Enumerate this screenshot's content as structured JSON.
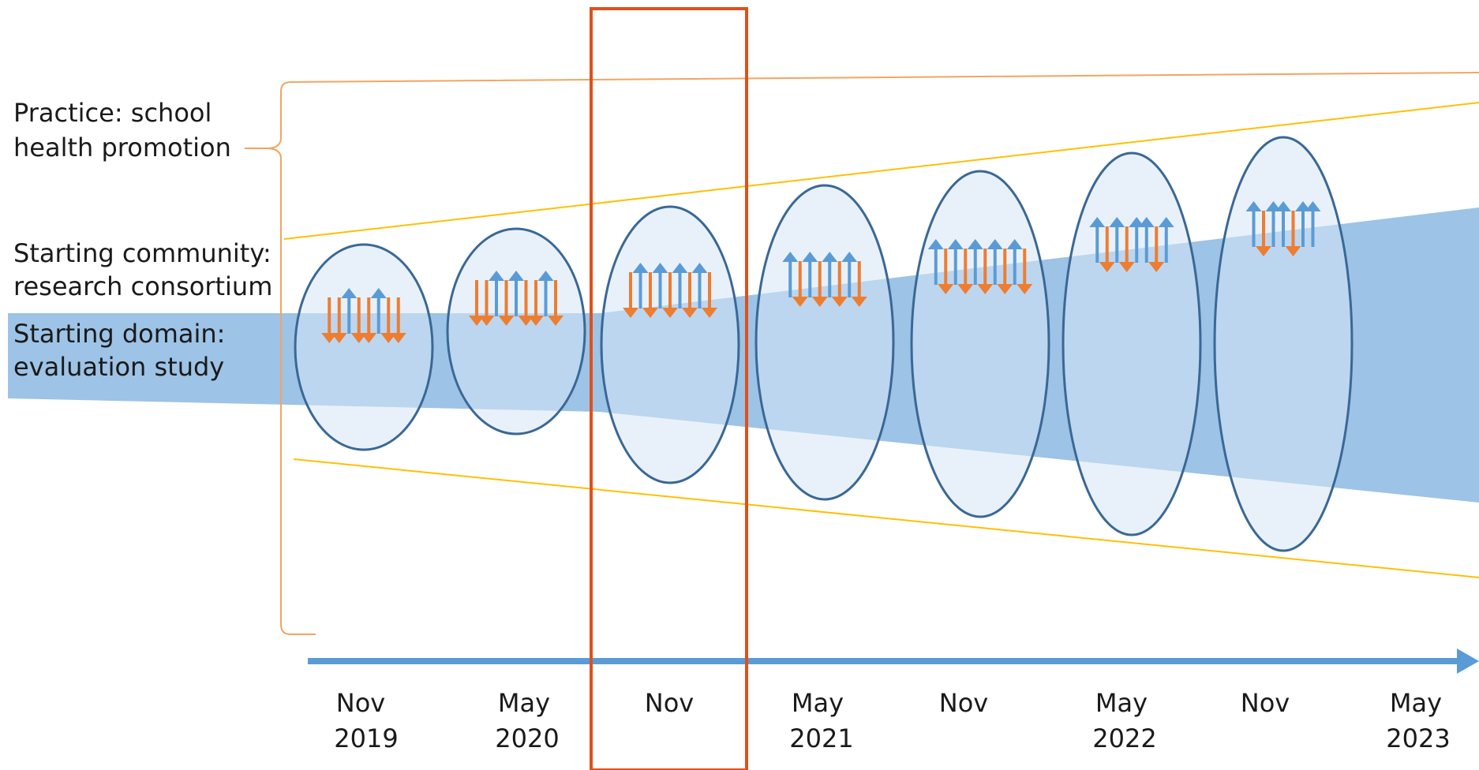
{
  "labels": {
    "practice": [
      "Practice: school",
      "health promotion"
    ],
    "community": [
      "Starting community:",
      "research consortium"
    ],
    "domain": [
      "Starting domain:",
      "evaluation study"
    ]
  },
  "timeline": [
    {
      "month": "Nov",
      "year": "2019"
    },
    {
      "month": "May",
      "year": "2020"
    },
    {
      "month": "Nov",
      "year": ""
    },
    {
      "month": "May",
      "year": "2021"
    },
    {
      "month": "Nov",
      "year": ""
    },
    {
      "month": "May",
      "year": "2022"
    },
    {
      "month": "Nov",
      "year": ""
    },
    {
      "month": "May",
      "year": "2023"
    }
  ],
  "arrow_patterns": [
    [
      "down",
      "down",
      "up",
      "down",
      "down",
      "up",
      "down",
      "down"
    ],
    [
      "down",
      "down",
      "up",
      "down",
      "up",
      "down",
      "down",
      "up",
      "down"
    ],
    [
      "down",
      "up",
      "down",
      "up",
      "down",
      "up",
      "down",
      "up",
      "down"
    ],
    [
      "up",
      "down",
      "up",
      "down",
      "up",
      "down",
      "up",
      "down"
    ],
    [
      "up",
      "down",
      "up",
      "down",
      "up",
      "down",
      "up",
      "down",
      "up",
      "down"
    ],
    [
      "up",
      "down",
      "up",
      "down",
      "up",
      "up",
      "down",
      "up"
    ],
    [
      "up",
      "down",
      "up",
      "up",
      "down",
      "up",
      "up"
    ]
  ],
  "highlighted_period_index": 2,
  "colors": {
    "band": "#9dc3e6",
    "ellipse_fill": "#d6e6f5",
    "ellipse_stroke": "#3a6896",
    "arrow_up": "#5b9bd5",
    "arrow_down": "#ed7d31",
    "bracket": "#f4a460",
    "funnel_line": "#ffc000",
    "highlight": "#e0501a",
    "timeline_arrow": "#5b9bd5"
  }
}
